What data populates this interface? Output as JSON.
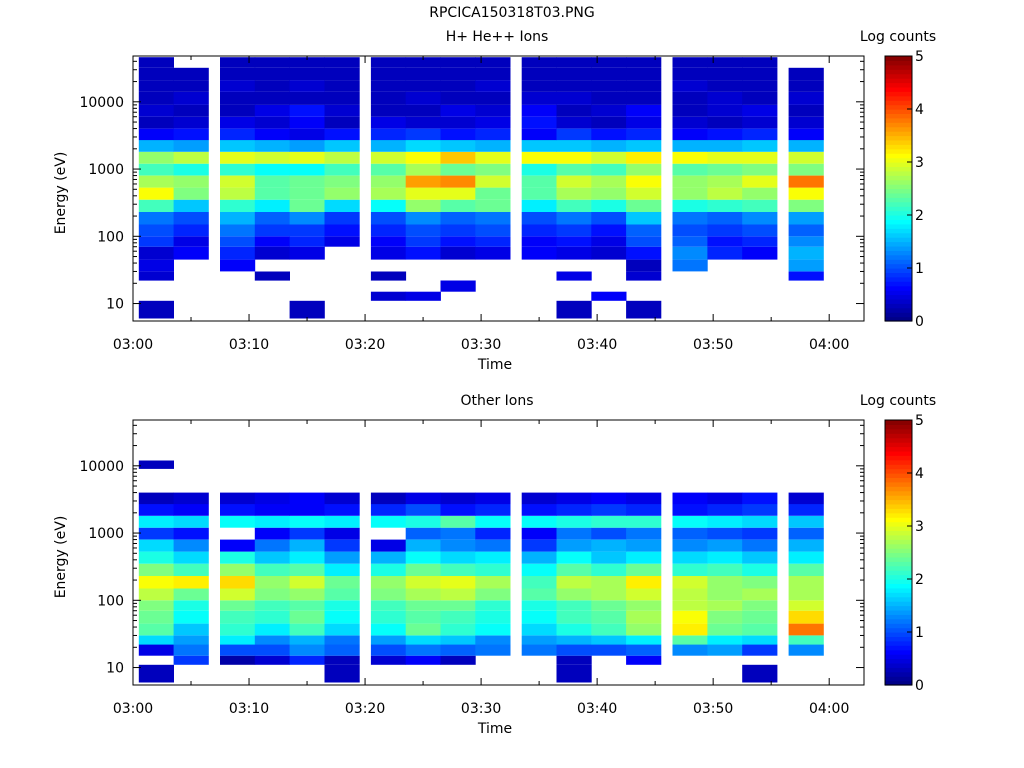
{
  "page": {
    "title": "RPCICA150318T03.PNG"
  },
  "chart_data": [
    {
      "type": "heatmap",
      "title": "H+ He++ Ions",
      "xlabel": "Time",
      "ylabel": "Energy (eV)",
      "colorbar_label": "Log counts",
      "colorbar_ticks": [
        "0",
        "1",
        "2",
        "3",
        "4",
        "5"
      ],
      "colorbar_range": [
        0,
        5
      ],
      "yscale": "log",
      "ylim": [
        5.5,
        48000
      ],
      "y_ticks": [
        10,
        100,
        1000,
        10000
      ],
      "y_tick_labels": [
        "10",
        "100",
        "1000",
        "10000"
      ],
      "xlim": [
        "03:00",
        "04:03"
      ],
      "x_tick_labels": [
        "03:00",
        "03:10",
        "03:20",
        "03:30",
        "03:40",
        "03:50",
        "04:00"
      ],
      "time_bins": [
        "03:02",
        "03:05",
        "03:09",
        "03:12",
        "03:15",
        "03:18",
        "03:22",
        "03:25",
        "03:28",
        "03:31",
        "03:35",
        "03:38",
        "03:41",
        "03:44",
        "03:48",
        "03:51",
        "03:54",
        "03:58"
      ],
      "energy_bands": [
        {
          "range": [
            6,
            11
          ],
          "log_counts": [
            0.3,
            null,
            null,
            null,
            0.3,
            null,
            null,
            null,
            null,
            null,
            null,
            0.3,
            null,
            0.3,
            null,
            null,
            null,
            null
          ]
        },
        {
          "range": [
            11,
            15
          ],
          "log_counts": [
            null,
            null,
            null,
            null,
            null,
            null,
            0.4,
            0.5,
            null,
            null,
            null,
            null,
            0.6,
            null,
            null,
            null,
            null,
            null
          ]
        },
        {
          "range": [
            15,
            22
          ],
          "log_counts": [
            null,
            null,
            null,
            null,
            null,
            null,
            null,
            null,
            0.5,
            null,
            null,
            null,
            null,
            null,
            null,
            null,
            null,
            null
          ]
        },
        {
          "range": [
            22,
            30
          ],
          "log_counts": [
            0.4,
            null,
            null,
            0.3,
            null,
            null,
            0.3,
            null,
            null,
            null,
            null,
            0.5,
            null,
            0.4,
            null,
            null,
            null,
            0.7
          ]
        },
        {
          "range": [
            30,
            45
          ],
          "log_counts": [
            0.5,
            null,
            0.6,
            null,
            null,
            null,
            null,
            null,
            null,
            null,
            null,
            null,
            null,
            0.3,
            1.2,
            null,
            null,
            1.4
          ]
        },
        {
          "range": [
            45,
            70
          ],
          "log_counts": [
            0.4,
            0.6,
            0.8,
            0.4,
            0.5,
            null,
            0.5,
            0.7,
            0.4,
            0.5,
            0.6,
            0.5,
            0.4,
            0.7,
            1.3,
            0.8,
            0.6,
            1.5
          ]
        },
        {
          "range": [
            70,
            100
          ],
          "log_counts": [
            0.9,
            0.5,
            1.0,
            0.6,
            0.8,
            0.5,
            0.6,
            0.9,
            0.7,
            0.8,
            0.6,
            0.7,
            0.5,
            1.0,
            1.1,
            0.7,
            0.8,
            1.3
          ]
        },
        {
          "range": [
            100,
            150
          ],
          "log_counts": [
            1.0,
            0.8,
            1.2,
            0.9,
            0.9,
            0.7,
            0.8,
            1.0,
            0.9,
            1.0,
            0.8,
            0.9,
            0.7,
            1.1,
            1.0,
            0.9,
            1.0,
            1.1
          ]
        },
        {
          "range": [
            150,
            230
          ],
          "log_counts": [
            1.2,
            1.0,
            1.5,
            1.1,
            1.3,
            0.9,
            1.0,
            1.3,
            1.1,
            1.2,
            1.0,
            1.2,
            1.0,
            1.6,
            1.2,
            1.1,
            1.3,
            1.4
          ]
        },
        {
          "range": [
            230,
            350
          ],
          "log_counts": [
            2.2,
            1.6,
            2.1,
            1.8,
            2.4,
            1.7,
            1.9,
            2.6,
            2.3,
            2.4,
            1.8,
            2.2,
            2.0,
            2.4,
            2.0,
            2.1,
            2.2,
            2.5
          ]
        },
        {
          "range": [
            350,
            530
          ],
          "log_counts": [
            3.1,
            2.5,
            2.8,
            2.3,
            2.4,
            2.6,
            2.7,
            3.0,
            3.0,
            2.4,
            2.3,
            2.7,
            2.6,
            2.9,
            2.6,
            2.8,
            2.6,
            3.1
          ]
        },
        {
          "range": [
            530,
            800
          ],
          "log_counts": [
            2.7,
            2.6,
            2.9,
            2.3,
            2.4,
            2.5,
            2.6,
            3.6,
            3.7,
            2.9,
            2.3,
            2.9,
            2.7,
            3.1,
            2.6,
            2.7,
            3.0,
            3.8
          ]
        },
        {
          "range": [
            800,
            1200
          ],
          "log_counts": [
            2.2,
            2.0,
            2.1,
            1.9,
            1.9,
            2.2,
            2.3,
            2.7,
            2.4,
            2.5,
            2.0,
            2.3,
            2.2,
            2.6,
            2.3,
            2.4,
            2.5,
            2.5
          ]
        },
        {
          "range": [
            1200,
            1800
          ],
          "log_counts": [
            2.6,
            2.8,
            3.0,
            2.9,
            3.0,
            2.8,
            2.9,
            3.1,
            3.4,
            3.0,
            3.1,
            3.1,
            2.9,
            3.2,
            3.1,
            3.0,
            3.0,
            2.9
          ]
        },
        {
          "range": [
            1800,
            2700
          ],
          "log_counts": [
            1.5,
            1.4,
            1.6,
            1.5,
            1.4,
            1.6,
            1.5,
            1.7,
            1.6,
            1.5,
            1.6,
            1.6,
            1.5,
            1.6,
            1.5,
            1.5,
            1.6,
            1.5
          ]
        },
        {
          "range": [
            2700,
            4000
          ],
          "log_counts": [
            0.6,
            0.7,
            0.8,
            0.6,
            0.5,
            0.7,
            0.8,
            0.9,
            0.7,
            0.8,
            0.6,
            0.9,
            0.7,
            0.8,
            0.6,
            0.7,
            0.8,
            0.6
          ]
        },
        {
          "range": [
            4000,
            6000
          ],
          "log_counts": [
            0.3,
            0.4,
            0.5,
            0.4,
            0.6,
            0.3,
            0.5,
            0.4,
            0.4,
            0.5,
            0.7,
            0.4,
            0.3,
            0.5,
            0.4,
            0.3,
            0.4,
            0.4
          ]
        },
        {
          "range": [
            6000,
            9000
          ],
          "log_counts": [
            0.4,
            0.3,
            0.3,
            0.5,
            0.7,
            0.4,
            0.3,
            0.3,
            0.5,
            0.4,
            0.6,
            0.3,
            0.4,
            0.6,
            0.3,
            0.4,
            0.5,
            0.3
          ]
        },
        {
          "range": [
            9000,
            14000
          ],
          "log_counts": [
            0.3,
            0.4,
            0.3,
            0.3,
            0.3,
            0.3,
            0.3,
            0.4,
            0.3,
            0.3,
            0.4,
            0.4,
            0.3,
            0.3,
            0.3,
            0.4,
            0.3,
            0.4
          ]
        },
        {
          "range": [
            14000,
            21000
          ],
          "log_counts": [
            0.3,
            0.3,
            0.4,
            0.3,
            0.4,
            0.3,
            0.3,
            0.3,
            0.3,
            0.4,
            0.3,
            0.3,
            0.3,
            0.3,
            0.4,
            0.3,
            0.3,
            0.3
          ]
        },
        {
          "range": [
            21000,
            32000
          ],
          "log_counts": [
            0.3,
            0.3,
            0.3,
            0.3,
            0.3,
            0.3,
            0.3,
            0.3,
            0.3,
            0.3,
            0.3,
            0.3,
            0.3,
            0.3,
            0.3,
            0.3,
            0.3,
            0.3
          ]
        },
        {
          "range": [
            32000,
            46000
          ],
          "log_counts": [
            0.3,
            null,
            0.3,
            0.3,
            0.3,
            0.3,
            0.3,
            0.3,
            0.3,
            0.3,
            0.3,
            0.3,
            0.3,
            0.3,
            0.3,
            0.3,
            0.3,
            null
          ]
        }
      ]
    },
    {
      "type": "heatmap",
      "title": "Other Ions",
      "xlabel": "Time",
      "ylabel": "Energy (eV)",
      "colorbar_label": "Log counts",
      "colorbar_ticks": [
        "0",
        "1",
        "2",
        "3",
        "4",
        "5"
      ],
      "colorbar_range": [
        0,
        5
      ],
      "yscale": "log",
      "ylim": [
        5.5,
        48000
      ],
      "y_ticks": [
        10,
        100,
        1000,
        10000
      ],
      "y_tick_labels": [
        "10",
        "100",
        "1000",
        "10000"
      ],
      "xlim": [
        "03:00",
        "04:03"
      ],
      "x_tick_labels": [
        "03:00",
        "03:10",
        "03:20",
        "03:30",
        "03:40",
        "03:50",
        "04:00"
      ],
      "time_bins": [
        "03:02",
        "03:05",
        "03:09",
        "03:12",
        "03:15",
        "03:18",
        "03:22",
        "03:25",
        "03:28",
        "03:31",
        "03:35",
        "03:38",
        "03:41",
        "03:44",
        "03:48",
        "03:51",
        "03:54",
        "03:58"
      ],
      "energy_bands": [
        {
          "range": [
            6,
            11
          ],
          "log_counts": [
            0.3,
            null,
            null,
            null,
            null,
            0.3,
            null,
            null,
            null,
            null,
            null,
            0.3,
            null,
            null,
            null,
            null,
            0.3,
            null
          ]
        },
        {
          "range": [
            11,
            15
          ],
          "log_counts": [
            null,
            0.9,
            0.2,
            0.4,
            0.8,
            0.3,
            0.4,
            0.6,
            0.3,
            null,
            null,
            0.3,
            null,
            0.6,
            null,
            null,
            null,
            null
          ]
        },
        {
          "range": [
            15,
            22
          ],
          "log_counts": [
            0.5,
            1.2,
            1.0,
            1.0,
            1.3,
            1.1,
            1.0,
            1.2,
            1.1,
            1.2,
            1.2,
            1.0,
            1.0,
            1.1,
            1.3,
            1.4,
            0.9,
            1.3
          ]
        },
        {
          "range": [
            22,
            30
          ],
          "log_counts": [
            1.7,
            1.4,
            1.8,
            1.3,
            1.5,
            1.2,
            1.4,
            1.7,
            1.6,
            1.3,
            1.4,
            1.5,
            1.6,
            1.8,
            2.3,
            1.8,
            1.7,
            2.2
          ]
        },
        {
          "range": [
            30,
            45
          ],
          "log_counts": [
            2.3,
            1.6,
            2.1,
            1.8,
            2.2,
            1.7,
            1.9,
            2.4,
            2.1,
            1.9,
            1.7,
            2.0,
            2.2,
            2.6,
            3.2,
            2.4,
            2.3,
            3.8
          ]
        },
        {
          "range": [
            45,
            70
          ],
          "log_counts": [
            2.4,
            1.9,
            2.2,
            2.1,
            2.4,
            1.9,
            2.1,
            2.3,
            2.2,
            2.0,
            1.9,
            2.2,
            2.3,
            2.7,
            3.1,
            2.5,
            2.4,
            3.3
          ]
        },
        {
          "range": [
            70,
            100
          ],
          "log_counts": [
            2.5,
            2.0,
            2.4,
            2.2,
            2.3,
            2.0,
            2.2,
            2.4,
            2.4,
            2.1,
            2.0,
            2.2,
            2.4,
            2.6,
            2.8,
            2.7,
            2.5,
            2.9
          ]
        },
        {
          "range": [
            100,
            150
          ],
          "log_counts": [
            2.8,
            2.4,
            2.9,
            2.5,
            2.6,
            2.3,
            2.5,
            2.7,
            2.8,
            2.5,
            2.3,
            2.6,
            2.7,
            2.9,
            2.8,
            2.6,
            2.7,
            2.7
          ]
        },
        {
          "range": [
            150,
            230
          ],
          "log_counts": [
            3.1,
            3.2,
            3.3,
            2.6,
            2.9,
            2.4,
            2.6,
            2.9,
            3.0,
            2.7,
            2.2,
            2.8,
            2.7,
            3.2,
            2.9,
            2.6,
            2.5,
            2.7
          ]
        },
        {
          "range": [
            230,
            350
          ],
          "log_counts": [
            2.5,
            2.2,
            2.6,
            2.2,
            2.3,
            1.8,
            2.0,
            2.4,
            2.2,
            2.1,
            1.9,
            2.3,
            2.1,
            2.4,
            2.1,
            2.2,
            2.0,
            2.3
          ]
        },
        {
          "range": [
            350,
            530
          ],
          "log_counts": [
            2.0,
            1.7,
            2.0,
            1.6,
            1.8,
            1.4,
            1.5,
            1.9,
            1.7,
            1.8,
            1.5,
            1.9,
            1.6,
            1.8,
            1.7,
            1.8,
            1.6,
            1.8
          ]
        },
        {
          "range": [
            530,
            800
          ],
          "log_counts": [
            1.7,
            1.3,
            0.6,
            1.2,
            1.5,
            0.9,
            0.5,
            1.5,
            1.3,
            1.2,
            0.9,
            1.4,
            1.5,
            1.4,
            1.3,
            1.4,
            1.2,
            1.5
          ]
        },
        {
          "range": [
            800,
            1200
          ],
          "log_counts": [
            0.9,
            0.7,
            null,
            0.6,
            0.9,
            0.5,
            null,
            1.1,
            1.2,
            0.8,
            0.6,
            1.2,
            1.0,
            1.2,
            1.1,
            1.0,
            0.9,
            1.1
          ]
        },
        {
          "range": [
            1200,
            1800
          ],
          "log_counts": [
            1.8,
            1.7,
            1.9,
            1.8,
            1.9,
            1.8,
            1.9,
            2.0,
            2.3,
            1.9,
            1.9,
            2.0,
            2.1,
            2.1,
            1.9,
            1.8,
            1.7,
            1.6
          ]
        },
        {
          "range": [
            1800,
            2700
          ],
          "log_counts": [
            0.7,
            0.6,
            0.7,
            0.6,
            0.6,
            0.7,
            0.8,
            1.0,
            0.7,
            0.8,
            0.7,
            0.8,
            0.9,
            0.8,
            0.7,
            0.8,
            0.9,
            0.8
          ]
        },
        {
          "range": [
            2700,
            4000
          ],
          "log_counts": [
            0.3,
            0.4,
            0.4,
            0.5,
            0.6,
            0.4,
            0.3,
            0.5,
            0.4,
            0.5,
            0.4,
            0.5,
            0.6,
            0.5,
            0.6,
            0.5,
            0.7,
            0.4
          ]
        },
        {
          "range": [
            9000,
            12000
          ],
          "log_counts": [
            0.3,
            null,
            null,
            null,
            null,
            null,
            null,
            null,
            null,
            null,
            null,
            null,
            null,
            null,
            null,
            null,
            null,
            null
          ]
        }
      ]
    }
  ]
}
